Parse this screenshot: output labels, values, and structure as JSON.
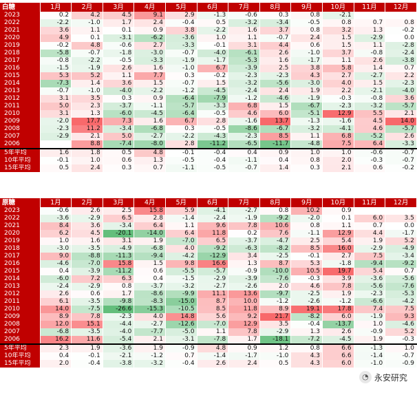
{
  "chart_data": [
    {
      "type": "heatmap",
      "title": "白糖",
      "months": [
        "1月",
        "2月",
        "3月",
        "4月",
        "5月",
        "6月",
        "7月",
        "8月",
        "9月",
        "10月",
        "11月",
        "12月"
      ],
      "rows": [
        {
          "label": "2023",
          "values": [
            0.2,
            4.2,
            4.5,
            9.1,
            2.9,
            -1.3,
            -0.6,
            0.3,
            0.8,
            -2.1,
            null,
            null
          ]
        },
        {
          "label": "2022",
          "values": [
            -2.2,
            -1.0,
            1.7,
            2.4,
            -0.4,
            0.5,
            -3.2,
            -3.4,
            -0.5,
            0.8,
            0.7,
            0.8
          ]
        },
        {
          "label": "2021",
          "values": [
            3.6,
            1.1,
            0.1,
            0.9,
            3.8,
            -2.2,
            1.6,
            3.7,
            0.8,
            3.2,
            1.3,
            -0.2
          ]
        },
        {
          "label": "2020",
          "values": [
            4.9,
            0.1,
            -3.1,
            -6.2,
            -3.6,
            1.0,
            1.1,
            -0.7,
            2.4,
            1.5,
            -2.9,
            0.0
          ]
        },
        {
          "label": "2019",
          "values": [
            -0.2,
            4.8,
            -0.6,
            2.7,
            -3.3,
            -0.1,
            3.1,
            4.4,
            0.6,
            1.5,
            1.1,
            -2.8
          ]
        },
        {
          "label": "2018",
          "values": [
            -5.8,
            -0.7,
            -1.8,
            -3.0,
            -0.7,
            -4.0,
            -6.1,
            2.6,
            -1.0,
            3.7,
            -0.8,
            -2.4
          ]
        },
        {
          "label": "2017",
          "values": [
            -0.8,
            -2.2,
            -0.5,
            -3.3,
            -1.9,
            -1.7,
            -5.3,
            1.6,
            -1.7,
            1.1,
            2.6,
            -3.8
          ]
        },
        {
          "label": "2016",
          "values": [
            -1.5,
            -1.9,
            2.6,
            1.6,
            -1.0,
            6.7,
            -3.9,
            2.5,
            3.8,
            5.8,
            1.4,
            0.7
          ]
        },
        {
          "label": "2015",
          "values": [
            5.3,
            5.2,
            1.1,
            7.7,
            0.3,
            -0.2,
            -2.3,
            -2.3,
            4.3,
            2.7,
            -2.7,
            2.2
          ]
        },
        {
          "label": "2014",
          "values": [
            -7.3,
            1.4,
            3.6,
            1.5,
            -0.7,
            1.5,
            -3.2,
            -5.6,
            -3.0,
            4.0,
            1.5,
            -2.3
          ]
        },
        {
          "label": "2013",
          "values": [
            -0.7,
            -1.0,
            -4.0,
            -2.2,
            -1.2,
            -4.5,
            -2.4,
            2.4,
            1.9,
            2.2,
            -2.1,
            -4.0
          ]
        },
        {
          "label": "2012",
          "values": [
            3.1,
            3.5,
            0.3,
            0.9,
            -6.4,
            -7.9,
            -1.2,
            -4.6,
            -1.9,
            -0.3,
            -0.8,
            3.6
          ]
        },
        {
          "label": "2011",
          "values": [
            5.0,
            2.3,
            -3.7,
            -1.1,
            -5.7,
            -3.3,
            6.8,
            1.5,
            -6.7,
            -2.3,
            -3.2,
            -5.7
          ]
        },
        {
          "label": "2010",
          "values": [
            3.1,
            1.3,
            -6.0,
            -4.5,
            -6.4,
            -0.5,
            4.6,
            6.0,
            -5.1,
            12.9,
            5.5,
            2.1
          ]
        },
        {
          "label": "2009",
          "values": [
            -2.0,
            17.7,
            7.3,
            1.6,
            6.7,
            2.8,
            -1.6,
            13.7,
            -1.3,
            -1.6,
            4.5,
            14.0
          ]
        },
        {
          "label": "2008",
          "values": [
            -2.3,
            11.2,
            -3.4,
            -6.8,
            0.3,
            -0.5,
            -8.6,
            -6.7,
            -3.2,
            -4.1,
            4.6,
            -5.7
          ]
        },
        {
          "label": "2007",
          "values": [
            -2.9,
            2.1,
            5.0,
            -2.7,
            -2.2,
            -4.3,
            -2.3,
            8.5,
            1.1,
            6.8,
            -5.2,
            2.6
          ]
        },
        {
          "label": "2006",
          "values": [
            null,
            8.8,
            -7.4,
            -8.0,
            2.8,
            -11.2,
            -6.5,
            -11.7,
            -4.8,
            7.5,
            6.4,
            -3.3
          ]
        }
      ],
      "averages": [
        {
          "label": "5年平均",
          "values": [
            1.6,
            1.8,
            0.5,
            4.8,
            -0.1,
            -0.4,
            0.4,
            0.9,
            1.0,
            1.0,
            -0.6,
            -0.7
          ]
        },
        {
          "label": "10年平均",
          "values": [
            -0.1,
            1.0,
            0.6,
            1.3,
            -0.5,
            -0.4,
            -1.1,
            0.4,
            0.8,
            2.0,
            -0.3,
            -0.7
          ]
        },
        {
          "label": "15年平均",
          "values": [
            0.5,
            2.4,
            0.3,
            0.7,
            -1.1,
            -0.5,
            -0.7,
            1.4,
            0.3,
            2.1,
            0.6,
            -0.2
          ]
        }
      ]
    },
    {
      "type": "heatmap",
      "title": "原糖",
      "months": [
        "1月",
        "2月",
        "3月",
        "4月",
        "5月",
        "6月",
        "7月",
        "8月",
        "9月",
        "10月",
        "11月",
        "12月"
      ],
      "rows": [
        {
          "label": "2023",
          "values": [
            -0.6,
            2.6,
            2.5,
            15.8,
            5.9,
            -4.1,
            -2.7,
            0.8,
            10.2,
            0.9,
            null,
            null
          ]
        },
        {
          "label": "2022",
          "values": [
            -3.6,
            -2.9,
            6.5,
            2.8,
            -1.4,
            -2.4,
            -1.9,
            -9.2,
            -2.0,
            0.1,
            6.0,
            3.5
          ]
        },
        {
          "label": "2021",
          "values": [
            8.4,
            3.6,
            -3.4,
            6.4,
            1.1,
            9.6,
            7.8,
            10.6,
            0.8,
            1.1,
            0.7,
            0.0
          ]
        },
        {
          "label": "2020",
          "values": [
            6.2,
            4.5,
            -20.1,
            -14.0,
            6.4,
            11.8,
            0.2,
            7.6,
            -1.1,
            12.9,
            4.4,
            -1.7
          ]
        },
        {
          "label": "2019",
          "values": [
            1.0,
            1.6,
            3.1,
            1.9,
            -7.0,
            6.5,
            -3.7,
            -4.7,
            2.5,
            5.4,
            1.9,
            5.2
          ]
        },
        {
          "label": "2018",
          "values": [
            -3.0,
            -3.5,
            -4.9,
            -6.8,
            4.0,
            -9.2,
            -6.3,
            -8.2,
            8.5,
            16.0,
            -2.9,
            -4.9
          ]
        },
        {
          "label": "2017",
          "values": [
            9.0,
            -8.8,
            -11.3,
            -9.4,
            -4.2,
            -12.9,
            3.4,
            -2.5,
            -0.1,
            2.7,
            7.5,
            -3.4
          ]
        },
        {
          "label": "2016",
          "values": [
            -4.6,
            -7.0,
            15.8,
            1.5,
            9.8,
            16.6,
            1.3,
            8.7,
            5.3,
            -1.8,
            -9.4,
            -9.2
          ]
        },
        {
          "label": "2015",
          "values": [
            0.4,
            -3.9,
            -11.2,
            0.6,
            -5.5,
            -5.7,
            -0.9,
            -10.0,
            10.5,
            19.7,
            5.4,
            0.7
          ]
        },
        {
          "label": "2014",
          "values": [
            -6.0,
            7.2,
            6.3,
            0.4,
            -1.5,
            -2.9,
            -3.9,
            -7.6,
            -0.3,
            3.9,
            -3.6,
            -5.6
          ]
        },
        {
          "label": "2013",
          "values": [
            -2.4,
            -2.9,
            0.8,
            -3.7,
            -3.2,
            -2.7,
            -2.6,
            2.0,
            4.6,
            7.8,
            -5.6,
            -7.6
          ]
        },
        {
          "label": "2012",
          "values": [
            2.6,
            0.6,
            1.7,
            -8.6,
            -9.9,
            11.1,
            13.6,
            -9.7,
            -2.5,
            1.9,
            -2.3,
            -5.3
          ]
        },
        {
          "label": "2011",
          "values": [
            6.1,
            -3.5,
            -9.8,
            -8.3,
            -15.0,
            8.7,
            10.0,
            -1.2,
            -2.6,
            -1.2,
            -6.6,
            -4.2
          ]
        },
        {
          "label": "2010",
          "values": [
            14.0,
            -7.5,
            -26.6,
            -15.3,
            -10.5,
            8.5,
            11.8,
            8.9,
            19.1,
            17.8,
            7.4,
            7.5
          ]
        },
        {
          "label": "2009",
          "values": [
            8.9,
            7.8,
            -2.3,
            4.0,
            14.8,
            5.6,
            9.2,
            21.7,
            -8.2,
            6.0,
            -1.9,
            9.3
          ]
        },
        {
          "label": "2008",
          "values": [
            12.0,
            15.1,
            -4.4,
            -2.7,
            -12.6,
            -7.0,
            12.9,
            3.5,
            -0.4,
            -13.7,
            1.0,
            -4.6
          ]
        },
        {
          "label": "2007",
          "values": [
            -6.8,
            -3.5,
            -4.0,
            -7.7,
            -5.0,
            1.1,
            7.8,
            -2.9,
            1.3,
            2.6,
            -0.9,
            5.2
          ]
        },
        {
          "label": "2006",
          "values": [
            16.2,
            11.6,
            -5.4,
            2.1,
            -3.1,
            -7.8,
            1.7,
            -18.1,
            -7.2,
            -4.5,
            1.9,
            -0.3
          ]
        }
      ],
      "averages": [
        {
          "label": "5年平均",
          "values": [
            2.3,
            1.9,
            -3.6,
            1.9,
            -0.9,
            4.8,
            0.9,
            1.2,
            0.8,
            6.6,
            -1.3,
            1.0
          ]
        },
        {
          "label": "10年平均",
          "values": [
            0.4,
            -0.1,
            -2.1,
            -1.2,
            0.7,
            -1.4,
            -1.7,
            -1.0,
            4.3,
            6.6,
            -1.4,
            -0.7
          ]
        },
        {
          "label": "15年平均",
          "values": [
            2.0,
            -0.4,
            -3.8,
            -3.2,
            -0.4,
            2.6,
            2.4,
            0.5,
            4.3,
            6.0,
            -1.0,
            -0.9
          ]
        }
      ]
    }
  ],
  "watermark": "永安研究",
  "colors": {
    "header": "#c00000",
    "positive": "#f8696b",
    "negative": "#63be7b",
    "neutral": "#ffffff"
  }
}
